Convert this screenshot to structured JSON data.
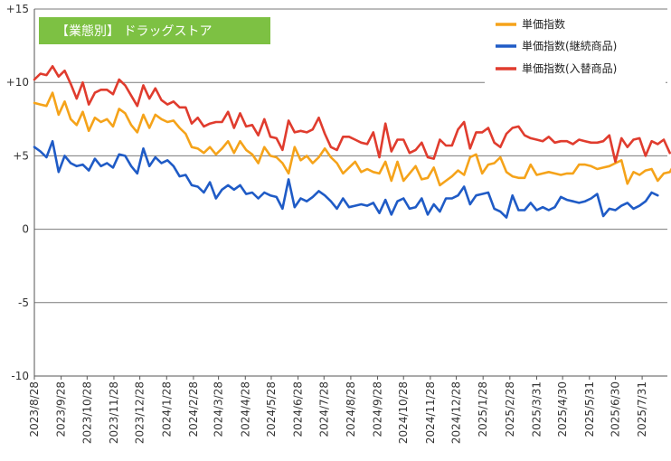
{
  "chart_data": {
    "type": "line",
    "title": "【業態別】 ドラッグストア",
    "title_bg": "#7DC143",
    "ylim": [
      -10,
      15
    ],
    "yticks": [
      {
        "value": 15,
        "label": "+15"
      },
      {
        "value": 10,
        "label": "+10"
      },
      {
        "value": 5,
        "label": "+5"
      },
      {
        "value": 0,
        "label": "0"
      },
      {
        "value": -5,
        "label": "-5"
      },
      {
        "value": -10,
        "label": "-10"
      }
    ],
    "grid": true,
    "legend_position": "top-right",
    "x_start_date": "2023-08-28",
    "x_end_date": "2025-08-25",
    "xtick_labels": [
      "2023/8/28",
      "2023/9/28",
      "2023/10/28",
      "2023/11/28",
      "2023/12/28",
      "2024/1/28",
      "2024/2/28",
      "2024/3/28",
      "2024/4/28",
      "2024/5/28",
      "2024/6/28",
      "2024/7/28",
      "2024/8/28",
      "2024/9/28",
      "2024/10/28",
      "2024/11/28",
      "2024/12/28",
      "2025/1/28",
      "2025/2/28",
      "2025/3/31",
      "2025/4/30",
      "2025/5/31",
      "2025/6/30",
      "2025/7/31"
    ],
    "series": [
      {
        "name": "単価指数",
        "color": "#F5A31A",
        "values": [
          8.6,
          8.5,
          8.4,
          9.3,
          7.8,
          8.7,
          7.5,
          7.1,
          8.0,
          6.7,
          7.6,
          7.3,
          7.5,
          7.0,
          8.2,
          7.9,
          7.1,
          6.6,
          7.8,
          6.9,
          7.8,
          7.5,
          7.3,
          7.4,
          6.9,
          6.5,
          5.6,
          5.5,
          5.2,
          5.6,
          5.1,
          5.5,
          6.0,
          5.2,
          6.0,
          5.4,
          5.1,
          4.5,
          5.6,
          5.0,
          4.9,
          4.5,
          3.8,
          5.6,
          4.7,
          5.0,
          4.5,
          4.9,
          5.5,
          4.9,
          4.5,
          3.8,
          4.2,
          4.6,
          3.9,
          4.1,
          3.9,
          3.8,
          4.6,
          3.3,
          4.6,
          3.3,
          3.8,
          4.3,
          3.4,
          3.5,
          4.2,
          3.0,
          3.3,
          3.6,
          4.0,
          3.7,
          4.9,
          5.1,
          3.8,
          4.4,
          4.5,
          4.9,
          3.9,
          3.6,
          3.5,
          3.5,
          4.4,
          3.7,
          3.8,
          3.9,
          3.8,
          3.7,
          3.8,
          3.8,
          4.4,
          4.4,
          4.3,
          4.1,
          4.2,
          4.3,
          4.5,
          4.7,
          3.1,
          3.9,
          3.7,
          4.0,
          4.1,
          3.3,
          3.8,
          3.9,
          4.6,
          4.1
        ]
      },
      {
        "name": "単価指数(継続商品)",
        "color": "#1F5BC6",
        "values": [
          5.6,
          5.3,
          4.9,
          6.0,
          3.9,
          5.0,
          4.5,
          4.3,
          4.4,
          4.0,
          4.8,
          4.3,
          4.5,
          4.2,
          5.1,
          5.0,
          4.3,
          3.8,
          5.5,
          4.3,
          4.9,
          4.5,
          4.7,
          4.3,
          3.6,
          3.7,
          3.0,
          2.9,
          2.5,
          3.2,
          2.1,
          2.7,
          3.0,
          2.7,
          3.0,
          2.4,
          2.5,
          2.1,
          2.5,
          2.3,
          2.2,
          1.4,
          3.4,
          1.5,
          2.1,
          1.9,
          2.2,
          2.6,
          2.3,
          1.9,
          1.4,
          2.1,
          1.5,
          1.6,
          1.7,
          1.6,
          1.8,
          1.1,
          2.0,
          1.0,
          1.9,
          2.1,
          1.4,
          1.5,
          2.1,
          1.0,
          1.7,
          1.2,
          2.1,
          2.1,
          2.3,
          2.9,
          1.7,
          2.3,
          2.4,
          2.5,
          1.4,
          1.2,
          0.8,
          2.3,
          1.3,
          1.3,
          1.8,
          1.3,
          1.5,
          1.3,
          1.5,
          2.2,
          2.0,
          1.9,
          1.8,
          1.9,
          2.1,
          2.4,
          0.9,
          1.4,
          1.3,
          1.6,
          1.8,
          1.4,
          1.6,
          1.9,
          2.5,
          2.3
        ]
      },
      {
        "name": "単価指数(入替商品)",
        "color": "#E03C2E",
        "values": [
          10.2,
          10.6,
          10.5,
          11.1,
          10.4,
          10.8,
          9.9,
          8.9,
          10.0,
          8.5,
          9.3,
          9.5,
          9.5,
          9.2,
          10.2,
          9.8,
          9.1,
          8.4,
          9.8,
          8.9,
          9.6,
          8.8,
          8.5,
          8.7,
          8.3,
          8.3,
          7.2,
          7.6,
          7.0,
          7.2,
          7.3,
          7.3,
          8.0,
          6.9,
          7.9,
          7.0,
          7.1,
          6.4,
          7.5,
          6.3,
          6.2,
          5.4,
          7.4,
          6.6,
          6.7,
          6.6,
          6.8,
          7.6,
          6.5,
          5.6,
          5.4,
          6.3,
          6.3,
          6.1,
          5.9,
          5.8,
          6.6,
          4.9,
          7.2,
          5.3,
          6.1,
          6.1,
          5.2,
          5.4,
          5.9,
          4.9,
          4.8,
          6.1,
          5.7,
          5.7,
          6.8,
          7.3,
          5.5,
          6.6,
          6.6,
          6.9,
          5.9,
          5.6,
          6.5,
          6.9,
          7.0,
          6.4,
          6.2,
          6.1,
          6.0,
          6.3,
          5.9,
          6.0,
          6.0,
          5.8,
          6.1,
          6.0,
          5.9,
          5.9,
          6.0,
          6.4,
          4.6,
          6.2,
          5.6,
          6.1,
          6.2,
          5.0,
          6.0,
          5.8,
          6.1,
          5.2
        ]
      }
    ]
  }
}
